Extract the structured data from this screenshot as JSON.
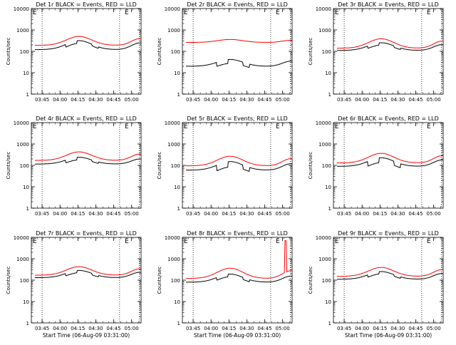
{
  "colors": {
    "events": "#000000",
    "lld": "#ff0000",
    "axis": "#000000",
    "background": "#ffffff"
  },
  "chart_data": [
    {
      "type": "line",
      "title": "Det 1r BLACK = Events, RED = LLD",
      "xlabel": "",
      "ylabel": "Counts/sec",
      "yscale": "log",
      "ylim": [
        1,
        10000
      ],
      "yticks": [
        "1",
        "10",
        "100",
        "1000",
        "10000"
      ],
      "xticks": [
        "03:45",
        "04:00",
        "04:15",
        "04:30",
        "04:45",
        "05:00"
      ],
      "markers": [
        "03:45",
        "04:50"
      ],
      "series": [
        {
          "base": 120,
          "amp": 0.0,
          "bump": 0.42,
          "dips": [
            [
              3,
              12,
              0.75
            ],
            [
              25,
              30,
              0.85
            ]
          ],
          "spike": null
        },
        {
          "base": 190,
          "amp": 0.0,
          "bump": 0.42,
          "dips": [],
          "spike": null
        }
      ]
    },
    {
      "type": "line",
      "title": "Det 2r BLACK = Events, RED = LLD",
      "xlabel": "",
      "ylabel": "Counts/sec",
      "yscale": "log",
      "ylim": [
        1,
        10000
      ],
      "yticks": [
        "1",
        "10",
        "100",
        "1000",
        "10000"
      ],
      "xticks": [
        "03:45",
        "04:00",
        "04:15",
        "04:30",
        "04:45",
        "05:00"
      ],
      "markers": [
        "03:45",
        "04:50"
      ],
      "series": [
        {
          "base": 20,
          "amp": 0.0,
          "bump": 0.32,
          "dips": [
            [
              3,
              12,
              0.65
            ],
            [
              25,
              30,
              0.7
            ]
          ],
          "spike": null
        },
        {
          "base": 260,
          "amp": 0.0,
          "bump": 0.14,
          "dips": [],
          "spike": null
        }
      ]
    },
    {
      "type": "line",
      "title": "Det 3r BLACK = Events, RED = LLD",
      "xlabel": "",
      "ylabel": "Counts/sec",
      "yscale": "log",
      "ylim": [
        1,
        10000
      ],
      "yticks": [
        "1",
        "10",
        "100",
        "1000",
        "10000"
      ],
      "xticks": [
        "03:45",
        "04:00",
        "04:15",
        "04:30",
        "04:45",
        "05:00"
      ],
      "markers": [
        "03:45",
        "04:50"
      ],
      "series": [
        {
          "base": 110,
          "amp": 0.0,
          "bump": 0.36,
          "dips": [
            [
              3,
              12,
              0.78
            ],
            [
              25,
              30,
              0.85
            ]
          ],
          "spike": null
        },
        {
          "base": 140,
          "amp": 0.0,
          "bump": 0.44,
          "dips": [],
          "spike": null
        }
      ]
    },
    {
      "type": "line",
      "title": "Det 4r BLACK = Events, RED = LLD",
      "xlabel": "",
      "ylabel": "Counts/sec",
      "yscale": "log",
      "ylim": [
        1,
        10000
      ],
      "yticks": [
        "1",
        "10",
        "100",
        "1000",
        "10000"
      ],
      "xticks": [
        "03:45",
        "04:00",
        "04:15",
        "04:30",
        "04:45",
        "05:00"
      ],
      "markers": [
        "03:45",
        "04:50"
      ],
      "series": [
        {
          "base": 115,
          "amp": 0.0,
          "bump": 0.32,
          "dips": [
            [
              3,
              12,
              0.75
            ],
            [
              25,
              30,
              0.85
            ]
          ],
          "spike": null
        },
        {
          "base": 170,
          "amp": 0.0,
          "bump": 0.4,
          "dips": [],
          "spike": null
        }
      ]
    },
    {
      "type": "line",
      "title": "Det 5r BLACK = Events, RED = LLD",
      "xlabel": "",
      "ylabel": "Counts/sec",
      "yscale": "log",
      "ylim": [
        1,
        10000
      ],
      "yticks": [
        "1",
        "10",
        "100",
        "1000",
        "10000"
      ],
      "xticks": [
        "03:45",
        "04:00",
        "04:15",
        "04:30",
        "04:45",
        "05:00"
      ],
      "markers": [
        "03:45",
        "04:50"
      ],
      "series": [
        {
          "base": 60,
          "amp": 0.0,
          "bump": 0.4,
          "dips": [
            [
              3,
              12,
              0.55
            ],
            [
              25,
              30,
              0.65
            ]
          ],
          "spike": null
        },
        {
          "base": 95,
          "amp": 0.0,
          "bump": 0.45,
          "dips": [],
          "spike": null
        }
      ]
    },
    {
      "type": "line",
      "title": "Det 6r BLACK = Events, RED = LLD",
      "xlabel": "",
      "ylabel": "Counts/sec",
      "yscale": "log",
      "ylim": [
        1,
        10000
      ],
      "yticks": [
        "1",
        "10",
        "100",
        "1000",
        "10000"
      ],
      "xticks": [
        "03:45",
        "04:00",
        "04:15",
        "04:30",
        "04:45",
        "05:00"
      ],
      "markers": [
        "03:45",
        "04:50"
      ],
      "series": [
        {
          "base": 90,
          "amp": 0.0,
          "bump": 0.4,
          "dips": [
            [
              3,
              12,
              0.6
            ],
            [
              25,
              30,
              0.65
            ]
          ],
          "spike": null
        },
        {
          "base": 130,
          "amp": 0.0,
          "bump": 0.45,
          "dips": [],
          "spike": null
        }
      ]
    },
    {
      "type": "line",
      "title": "Det 7r BLACK = Events, RED = LLD",
      "xlabel": "Start Time (06-Aug-09 03:31:00)",
      "ylabel": "Counts/sec",
      "yscale": "log",
      "ylim": [
        1,
        10000
      ],
      "yticks": [
        "1",
        "10",
        "100",
        "1000",
        "10000"
      ],
      "xticks": [
        "03:45",
        "04:00",
        "04:15",
        "04:30",
        "04:45",
        "05:00"
      ],
      "markers": [
        "03:45",
        "04:50"
      ],
      "series": [
        {
          "base": 130,
          "amp": 0.0,
          "bump": 0.34,
          "dips": [
            [
              3,
              12,
              0.78
            ],
            [
              25,
              30,
              0.85
            ]
          ],
          "spike": null
        },
        {
          "base": 170,
          "amp": 0.0,
          "bump": 0.4,
          "dips": [],
          "spike": null
        }
      ]
    },
    {
      "type": "line",
      "title": "Det 8r BLACK = Events, RED = LLD",
      "xlabel": "Start Time (06-Aug-09 03:31:00)",
      "ylabel": "Counts/sec",
      "yscale": "log",
      "ylim": [
        1,
        10000
      ],
      "yticks": [
        "1",
        "10",
        "100",
        "1000",
        "10000"
      ],
      "xticks": [
        "03:45",
        "04:00",
        "04:15",
        "04:30",
        "04:45",
        "05:00"
      ],
      "markers": [
        "03:45",
        "04:50"
      ],
      "series": [
        {
          "base": 80,
          "amp": 0.0,
          "bump": 0.38,
          "dips": [
            [
              3,
              12,
              0.75
            ],
            [
              25,
              30,
              0.8
            ]
          ],
          "spike": null
        },
        {
          "base": 120,
          "amp": 0.0,
          "bump": 0.48,
          "dips": [],
          "spike": [
            83.5,
            7000
          ]
        }
      ]
    },
    {
      "type": "line",
      "title": "Det 9r BLACK = Events, RED = LLD",
      "xlabel": "Start Time (06-Aug-09 03:31:00)",
      "ylabel": "Counts/sec",
      "yscale": "log",
      "ylim": [
        1,
        10000
      ],
      "yticks": [
        "1",
        "10",
        "100",
        "1000",
        "10000"
      ],
      "xticks": [
        "03:45",
        "04:00",
        "04:15",
        "04:30",
        "04:45",
        "05:00"
      ],
      "markers": [
        "03:45",
        "04:50"
      ],
      "series": [
        {
          "base": 110,
          "amp": 0.0,
          "bump": 0.36,
          "dips": [
            [
              3,
              12,
              0.78
            ],
            [
              25,
              30,
              0.85
            ]
          ],
          "spike": null
        },
        {
          "base": 150,
          "amp": 0.0,
          "bump": 0.42,
          "dips": [],
          "spike": null
        }
      ]
    }
  ]
}
